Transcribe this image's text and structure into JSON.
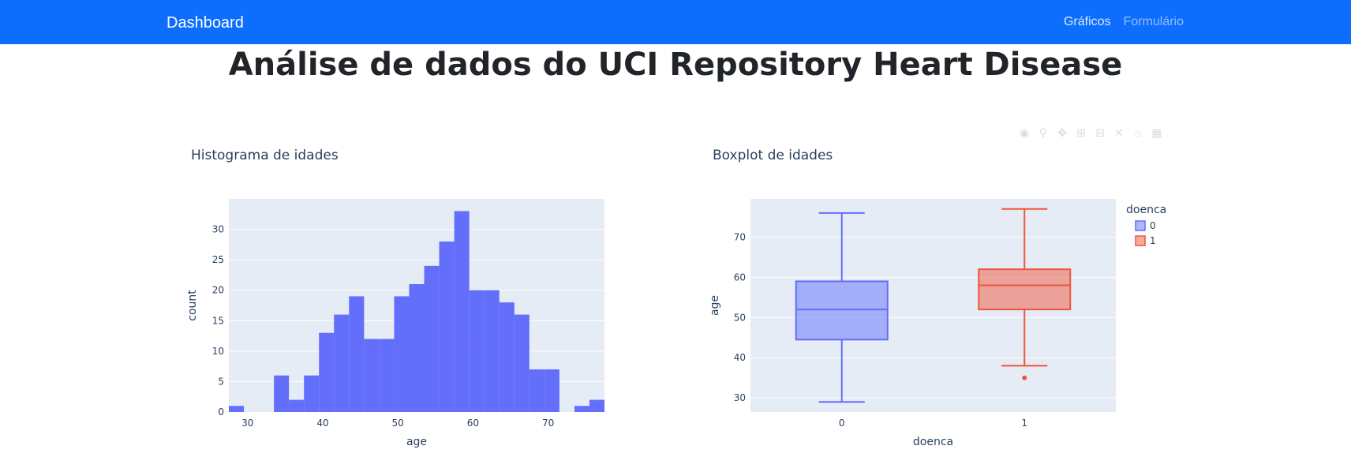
{
  "navbar": {
    "brand": "Dashboard",
    "links": [
      "Gráficos",
      "Formulário"
    ]
  },
  "page": {
    "title": "Análise de dados do UCI Repository Heart Disease"
  },
  "colors": {
    "navbar": "#0d6efd",
    "plot_bg": "#e5ecf6",
    "series_0": "#636efa",
    "series_1": "#ef553b"
  },
  "chart_data": [
    {
      "type": "bar",
      "title": "Histograma de idades",
      "xlabel": "age",
      "ylabel": "count",
      "xlim": [
        27.5,
        77.5
      ],
      "ylim": [
        0,
        35
      ],
      "xticks": [
        30,
        40,
        50,
        60,
        70
      ],
      "yticks": [
        0,
        5,
        10,
        15,
        20,
        25,
        30
      ],
      "bin_width": 2,
      "bin_starts": [
        27.5,
        29.5,
        31.5,
        33.5,
        35.5,
        37.5,
        39.5,
        41.5,
        43.5,
        45.5,
        47.5,
        49.5,
        51.5,
        53.5,
        55.5,
        57.5,
        59.5,
        61.5,
        63.5,
        65.5,
        67.5,
        69.5,
        71.5,
        73.5,
        75.5
      ],
      "counts": [
        1,
        0,
        0,
        6,
        2,
        6,
        13,
        16,
        19,
        12,
        12,
        19,
        21,
        24,
        28,
        33,
        20,
        20,
        18,
        16,
        7,
        7,
        0,
        1,
        2
      ],
      "color": "#636efa",
      "grid": true
    },
    {
      "type": "box",
      "title": "Boxplot de idades",
      "xlabel": "doenca",
      "ylabel": "age",
      "categories": [
        "0",
        "1"
      ],
      "ylim": [
        26.5,
        79.5
      ],
      "yticks": [
        30,
        40,
        50,
        60,
        70
      ],
      "legend_title": "doenca",
      "legend_position": "top-right",
      "series": [
        {
          "name": "0",
          "min": 29,
          "q1": 44.5,
          "median": 52,
          "q3": 59,
          "max": 76,
          "outliers": [],
          "color": "#636efa"
        },
        {
          "name": "1",
          "min": 38,
          "q1": 52,
          "median": 58,
          "q3": 62,
          "max": 77,
          "outliers": [
            35
          ],
          "color": "#ef553b"
        }
      ],
      "grid": true
    }
  ]
}
